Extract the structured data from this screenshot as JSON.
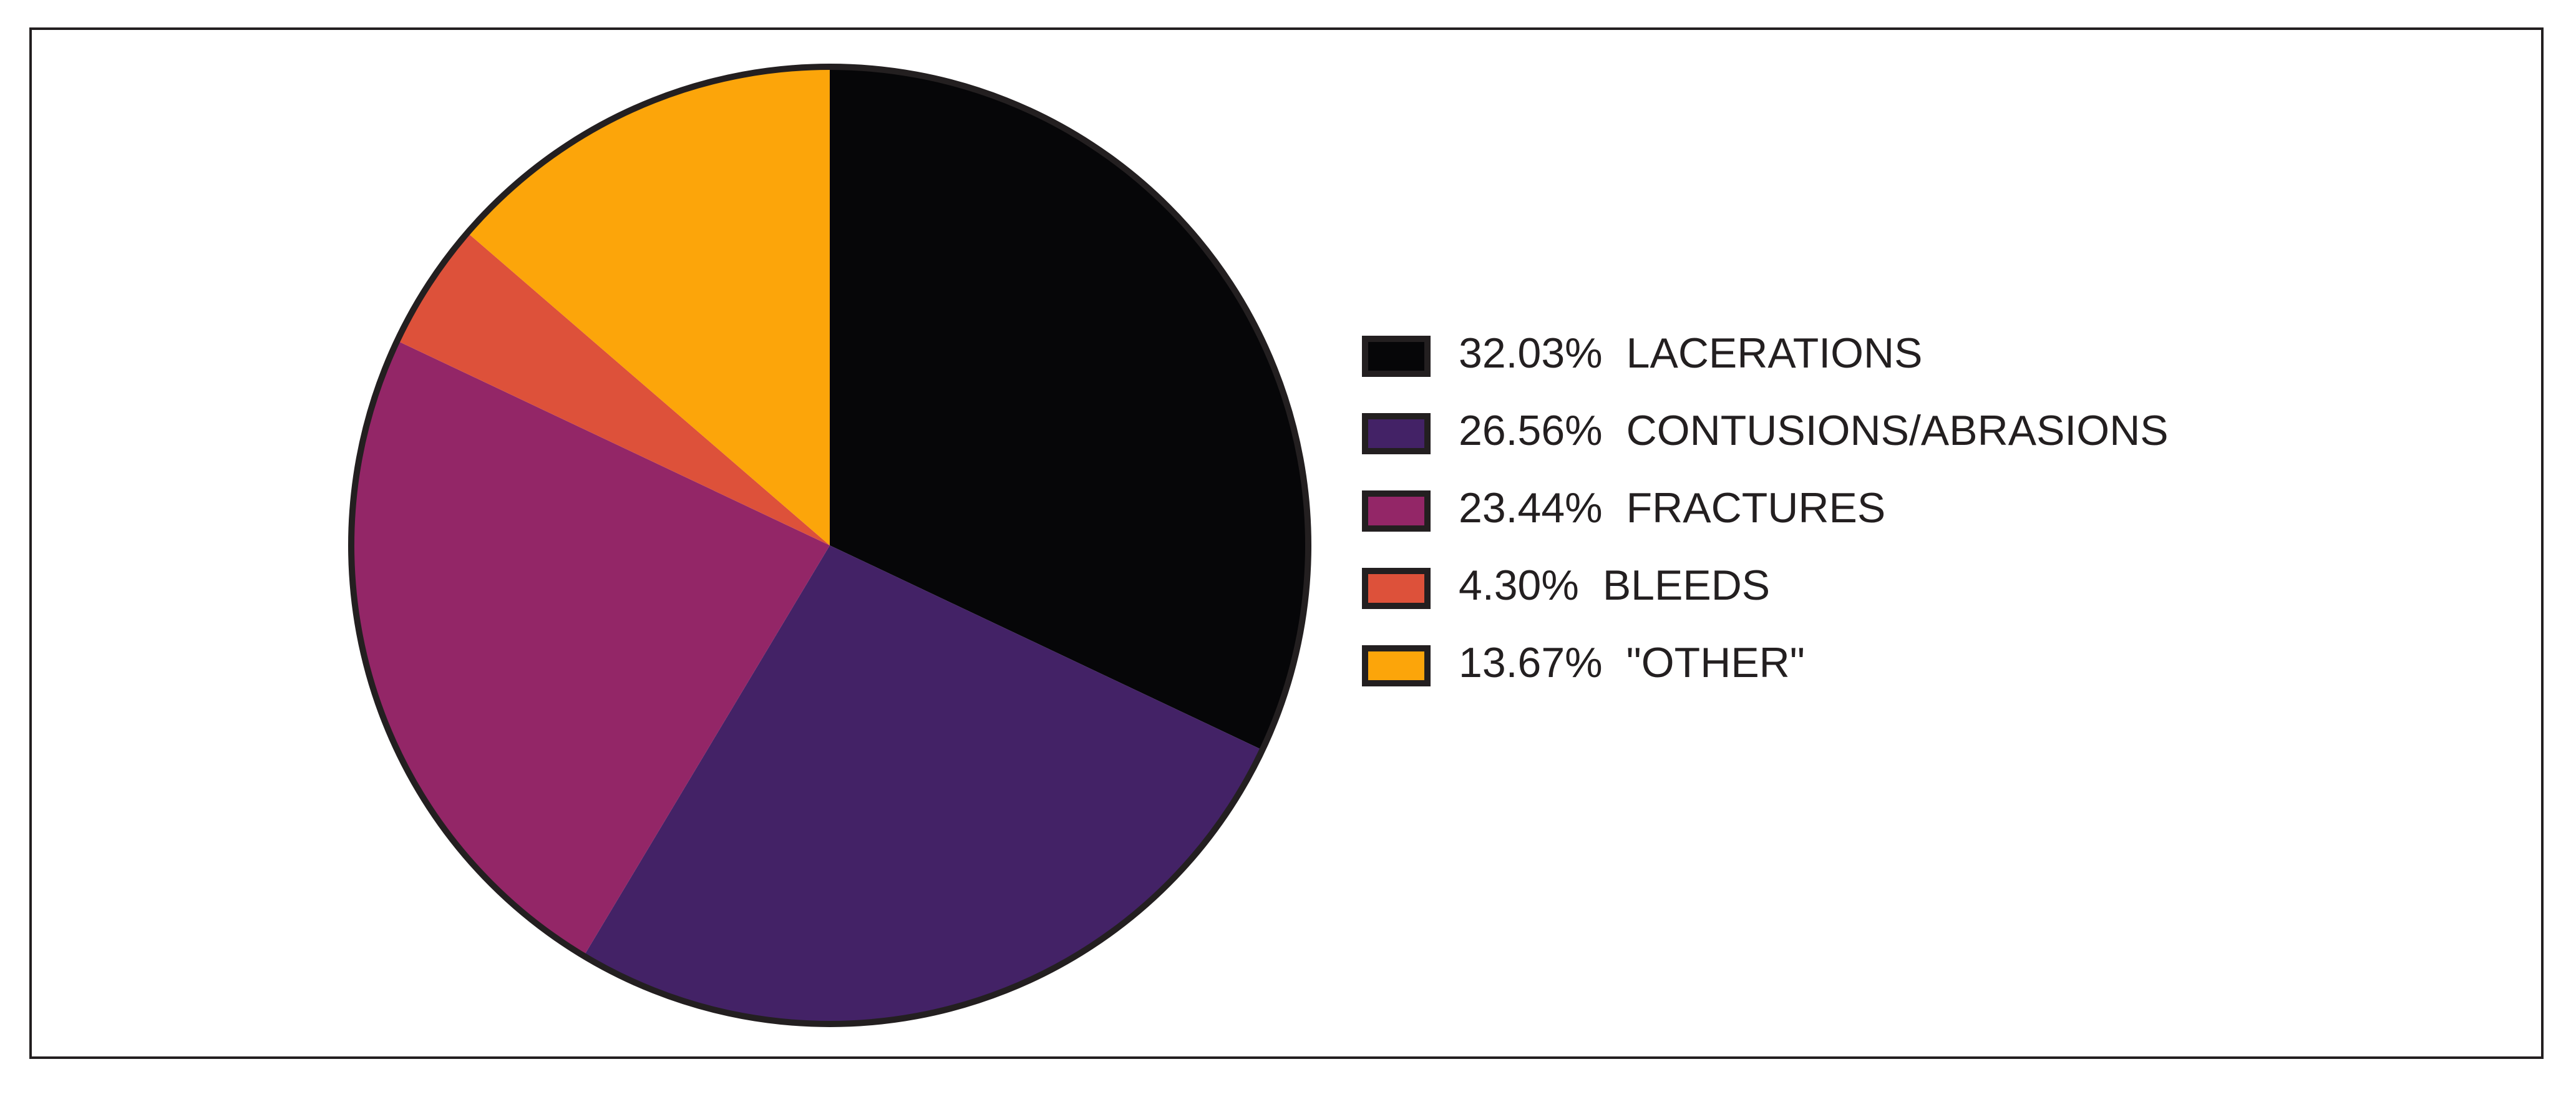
{
  "chart_data": {
    "type": "pie",
    "categories": [
      "LACERATIONS",
      "CONTUSIONS/ABRASIONS",
      "FRACTURES",
      "BLEEDS",
      "\"OTHER\""
    ],
    "values": [
      32.03,
      26.56,
      23.44,
      4.3,
      13.67
    ],
    "value_labels": [
      "32.03%",
      "26.56%",
      "23.44%",
      "4.30%",
      "13.67%"
    ],
    "colors": [
      "#060608",
      "#432266",
      "#932667",
      "#dd513a",
      "#fca50a"
    ],
    "legend": "right"
  }
}
